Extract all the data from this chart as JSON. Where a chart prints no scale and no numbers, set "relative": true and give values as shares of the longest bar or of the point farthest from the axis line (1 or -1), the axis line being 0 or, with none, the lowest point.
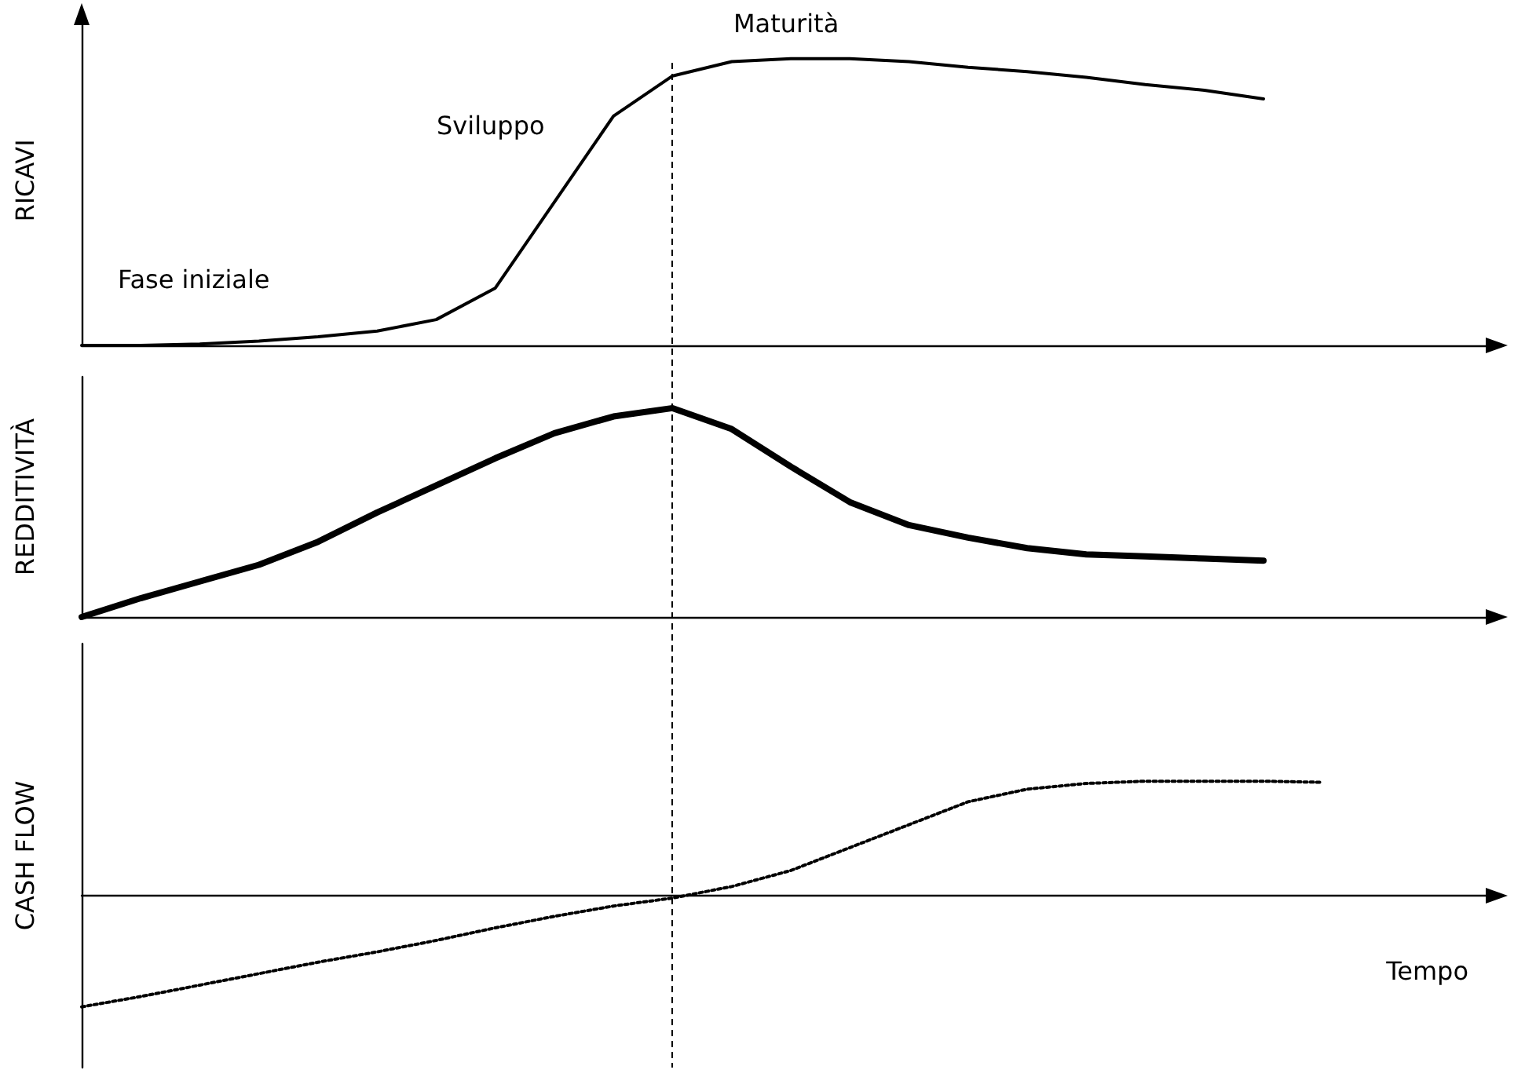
{
  "chart_data": [
    {
      "type": "line",
      "ylabel": "RICAVI",
      "relative": true,
      "tick_labels": false,
      "grid": false,
      "marker": "none",
      "line_style": "solid",
      "categories": [
        null,
        null,
        null,
        null,
        null,
        null,
        null,
        null,
        null,
        null,
        null,
        null,
        null,
        null,
        null,
        null,
        null,
        null,
        null,
        null,
        null,
        null,
        null,
        null,
        null
      ],
      "values": [
        0,
        0,
        0.005,
        0.015,
        0.03,
        0.05,
        0.09,
        0.2,
        0.5,
        0.8,
        0.94,
        0.99,
        1,
        1,
        0.99,
        0.97,
        0.955,
        0.935,
        0.91,
        0.89,
        0.86,
        null,
        null,
        null,
        null
      ],
      "color": "#000000",
      "annotations": [
        "Fase iniziale",
        "Sviluppo",
        "Maturità"
      ]
    },
    {
      "type": "line",
      "ylabel": "REDDITIVITÀ",
      "relative": true,
      "tick_labels": false,
      "grid": false,
      "marker": "none",
      "line_style": "solid",
      "categories": [
        null,
        null,
        null,
        null,
        null,
        null,
        null,
        null,
        null,
        null,
        null,
        null,
        null,
        null,
        null,
        null,
        null,
        null,
        null,
        null,
        null,
        null,
        null,
        null,
        null
      ],
      "values": [
        0,
        0.09,
        0.17,
        0.25,
        0.36,
        0.5,
        0.63,
        0.76,
        0.88,
        0.96,
        1,
        0.9,
        0.72,
        0.55,
        0.44,
        0.38,
        0.33,
        0.3,
        0.29,
        0.28,
        0.27,
        null,
        null,
        null,
        null
      ],
      "color": "#000000"
    },
    {
      "type": "line",
      "ylabel": "CASH FLOW",
      "xlabel": "Tempo",
      "relative": true,
      "tick_labels": false,
      "grid": false,
      "marker": "none",
      "line_style": "dotted",
      "categories": [
        null,
        null,
        null,
        null,
        null,
        null,
        null,
        null,
        null,
        null,
        null,
        null,
        null,
        null,
        null,
        null,
        null,
        null,
        null,
        null,
        null,
        null,
        null,
        null,
        null
      ],
      "values": [
        -0.97,
        -0.88,
        -0.78,
        -0.68,
        -0.58,
        -0.49,
        -0.39,
        -0.28,
        -0.18,
        -0.09,
        -0.02,
        0.08,
        0.22,
        0.42,
        0.62,
        0.82,
        0.93,
        0.98,
        1,
        1,
        1,
        0.99,
        null,
        null,
        null
      ],
      "color": "#000000"
    }
  ]
}
